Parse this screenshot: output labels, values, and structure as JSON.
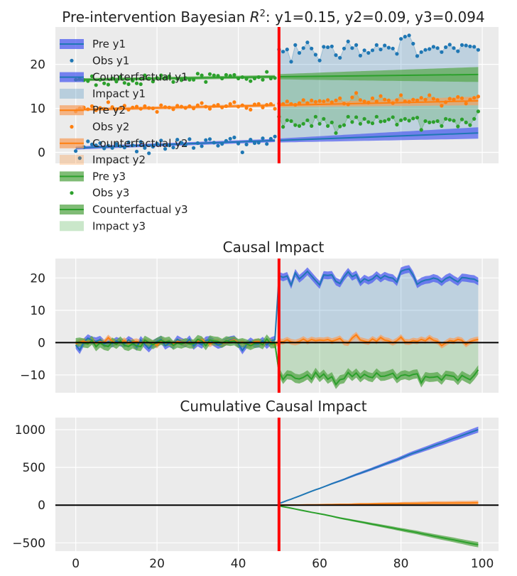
{
  "chart_data": [
    {
      "type": "line",
      "title": "Pre-intervention Bayesian R²: y1=0.15, y2=0.09, y3=0.094",
      "title_parts": {
        "prefix": "Pre-intervention Bayesian ",
        "var": "R",
        "sup": "2",
        "suffix": ": y1=0.15, y2=0.09, y3=0.094"
      },
      "xlabel": "",
      "ylabel": "",
      "xlim": [
        -5,
        104
      ],
      "ylim": [
        -2.5,
        28.5
      ],
      "xticks": [
        0,
        20,
        40,
        60,
        80,
        100
      ],
      "yticks": [
        0,
        10,
        20
      ],
      "intervention_x": 50,
      "grid": true,
      "legend_position": "upper-left",
      "legend": [
        "Pre y1",
        "Obs y1",
        "Counterfactual y1",
        "Impact y1",
        "Pre y2",
        "Obs y2",
        "Counterfactual y2",
        "Impact y2",
        "Pre y3",
        "Obs y3",
        "Counterfactual y3",
        "Impact y3"
      ],
      "series": [
        {
          "name": "y1",
          "color": "#1f77b4",
          "band_color": "#4c5cf0",
          "pre_fit": {
            "x": [
              0,
              49
            ],
            "y": [
              1.0,
              2.7
            ]
          },
          "counterfactual": {
            "x": [
              50,
              99
            ],
            "y": [
              2.7,
              4.4
            ],
            "hdi_width_start": 0.9,
            "hdi_width_end": 2.6
          },
          "observed": [
            0.3,
            -1.3,
            1.2,
            2.5,
            1.8,
            1.6,
            2.1,
            0.9,
            1.5,
            1.0,
            1.9,
            1.4,
            1.1,
            2.3,
            1.6,
            0.2,
            2.4,
            1.0,
            -0.2,
            1.3,
            2.0,
            2.7,
            0.8,
            1.6,
            1.1,
            2.9,
            2.2,
            1.7,
            3.0,
            1.0,
            2.1,
            1.4,
            2.8,
            3.0,
            2.2,
            1.5,
            1.9,
            2.6,
            3.1,
            3.4,
            2.0,
            0.0,
            1.8,
            2.9,
            2.1,
            2.2,
            3.2,
            1.9,
            3.1,
            3.6,
            23.4,
            22.9,
            23.4,
            20.6,
            24.4,
            22.6,
            23.7,
            25.0,
            23.6,
            22.2,
            20.9,
            24.0,
            23.9,
            24.1,
            22.1,
            21.5,
            23.6,
            25.2,
            23.7,
            24.4,
            22.0,
            23.2,
            22.6,
            23.2,
            24.4,
            23.4,
            24.3,
            23.8,
            23.6,
            22.4,
            25.8,
            26.3,
            26.6,
            24.7,
            21.9,
            22.8,
            23.3,
            23.5,
            24.0,
            23.7,
            22.8,
            23.9,
            24.5,
            23.7,
            23.0,
            24.4,
            24.3,
            24.1,
            24.0,
            23.3
          ]
        },
        {
          "name": "y2",
          "color": "#ff7f0e",
          "band_color": "#f5a061",
          "pre_fit": {
            "x": [
              0,
              49
            ],
            "y": [
              9.7,
              10.7
            ]
          },
          "counterfactual": {
            "x": [
              50,
              99
            ],
            "y": [
              10.7,
              11.7
            ],
            "hdi_width_start": 0.8,
            "hdi_width_end": 2.0
          },
          "observed": [
            9.3,
            10.0,
            10.2,
            9.8,
            10.5,
            9.6,
            10.1,
            9.9,
            11.4,
            10.3,
            9.8,
            10.1,
            10.6,
            9.7,
            10.2,
            10.4,
            9.9,
            10.5,
            10.1,
            10.0,
            9.2,
            10.7,
            10.3,
            10.2,
            9.8,
            10.6,
            10.4,
            10.1,
            10.5,
            10.0,
            10.7,
            11.2,
            10.4,
            9.9,
            10.6,
            10.8,
            10.2,
            10.5,
            11.0,
            11.4,
            10.4,
            10.7,
            10.1,
            9.7,
            10.9,
            11.0,
            10.2,
            10.8,
            11.0,
            9.9,
            11.1,
            11.0,
            11.6,
            11.0,
            10.8,
            11.2,
            11.9,
            11.2,
            11.8,
            11.5,
            11.7,
            11.6,
            11.9,
            11.4,
            11.8,
            12.3,
            11.1,
            10.9,
            12.5,
            13.5,
            11.9,
            11.6,
            11.3,
            12.3,
            11.6,
            12.8,
            12.0,
            11.8,
            11.2,
            11.9,
            13.0,
            11.6,
            11.5,
            12.0,
            11.8,
            12.4,
            12.0,
            13.0,
            12.2,
            11.9,
            10.6,
            11.4,
            12.2,
            12.0,
            12.6,
            12.3,
            11.1,
            12.0,
            12.4,
            12.7
          ]
        },
        {
          "name": "y3",
          "color": "#2ca02c",
          "band_color": "#55a648",
          "pre_fit": {
            "x": [
              0,
              49
            ],
            "y": [
              16.5,
              17.2
            ]
          },
          "counterfactual": {
            "x": [
              50,
              99
            ],
            "y": [
              17.2,
              17.7
            ],
            "hdi_width_start": 1.2,
            "hdi_width_end": 3.4
          },
          "observed": [
            16.5,
            16.7,
            16.4,
            16.2,
            17.3,
            15.3,
            16.5,
            15.7,
            15.4,
            16.8,
            16.1,
            17.2,
            15.8,
            15.5,
            16.3,
            15.7,
            15.5,
            17.5,
            16.8,
            16.1,
            16.9,
            17.5,
            17.0,
            17.3,
            16.0,
            16.7,
            16.4,
            16.9,
            16.5,
            16.5,
            17.9,
            17.5,
            16.0,
            17.8,
            17.5,
            17.4,
            16.8,
            17.6,
            17.4,
            17.6,
            16.8,
            17.1,
            16.7,
            16.2,
            16.8,
            17.1,
            16.5,
            18.3,
            16.8,
            16.9,
            8.1,
            5.8,
            7.3,
            7.1,
            6.2,
            6.0,
            6.5,
            7.3,
            6.0,
            8.1,
            6.5,
            7.6,
            6.0,
            6.8,
            4.4,
            5.9,
            6.2,
            8.1,
            6.9,
            8.0,
            6.5,
            7.6,
            6.9,
            6.6,
            8.1,
            7.0,
            7.1,
            7.5,
            8.0,
            6.3,
            7.3,
            7.6,
            7.2,
            7.7,
            7.9,
            5.1,
            7.1,
            6.8,
            6.9,
            7.1,
            6.0,
            7.6,
            7.4,
            7.2,
            5.9,
            7.5,
            6.8,
            6.2,
            7.6,
            9.3
          ]
        }
      ]
    },
    {
      "type": "line",
      "title": "Causal Impact",
      "xlabel": "",
      "ylabel": "",
      "xlim": [
        -5,
        104
      ],
      "ylim": [
        -15.5,
        26
      ],
      "xticks": [
        0,
        20,
        40,
        60,
        80,
        100
      ],
      "yticks": [
        -10,
        0,
        10,
        20
      ],
      "intervention_x": 50,
      "grid": true,
      "series_names": [
        "y1",
        "y2",
        "y3"
      ],
      "band_half_width": [
        1.2,
        0.9,
        1.4
      ],
      "notes": "impact = observed - counterfactual; shaded from the intervention line to the impact curve"
    },
    {
      "type": "line",
      "title": "Cumulative Causal Impact",
      "xlabel": "",
      "ylabel": "",
      "xlim": [
        -5,
        104
      ],
      "ylim": [
        -610,
        1160
      ],
      "xticks": [
        0,
        20,
        40,
        60,
        80,
        100
      ],
      "yticks": [
        -500,
        0,
        500,
        1000
      ],
      "intervention_x": 50,
      "grid": true,
      "series_names": [
        "y1",
        "y2",
        "y3"
      ],
      "band_half_width_end": [
        40,
        30,
        35
      ],
      "notes": "running sum of impact after the intervention; 0 before it"
    }
  ]
}
